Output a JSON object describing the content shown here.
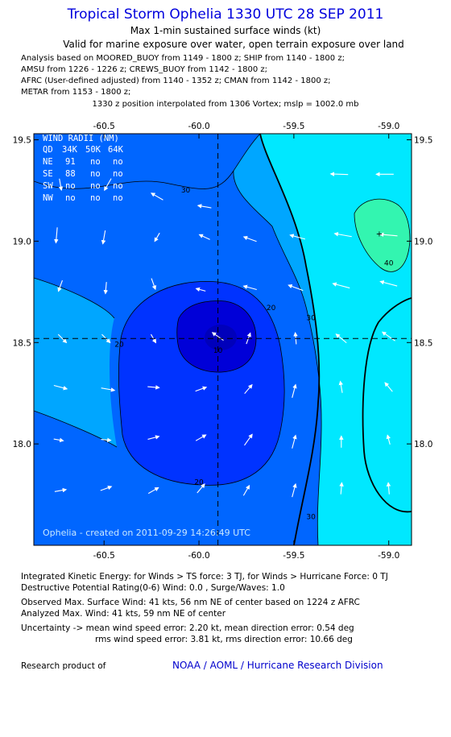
{
  "header": {
    "title": "Tropical Storm Ophelia 1330 UTC 28 SEP 2011",
    "subtitle1": "Max 1-min sustained surface winds (kt)",
    "subtitle2": "Valid for marine exposure over water, open terrain exposure over land",
    "analysis_lines": [
      "Analysis based on MOORED_BUOY from 1149 - 1800 z; SHIP from 1140 - 1800 z;",
      "AMSU from 1226 - 1226 z; CREWS_BUOY from 1142 - 1800 z;",
      "AFRC (User-defined adjusted) from 1140 - 1352 z; CMAN from 1142 - 1800 z;",
      "METAR from 1153 - 1800 z;"
    ],
    "interp_line": "1330 z position interpolated from 1306 Vortex; mslp = 1002.0 mb"
  },
  "wind_radii": {
    "title": "WIND RADII (NM)",
    "columns": [
      "QD",
      "34K",
      "50K",
      "64K"
    ],
    "rows": [
      [
        "NE",
        "91",
        "no",
        "no"
      ],
      [
        "SE",
        "88",
        "no",
        "no"
      ],
      [
        "SW",
        "no",
        "no",
        "no"
      ],
      [
        "NW",
        "no",
        "no",
        "no"
      ]
    ]
  },
  "created_text": "Ophelia - created on 2011-09-29 14:26:49 UTC",
  "colors": {
    "frame": "#000000",
    "crosshair": "#000000",
    "arrow": "#ffffff",
    "fill_0_10": "#0000d8",
    "fill_10_20": "#0033ff",
    "fill_20_30": "#0066ff",
    "fill_30_35": "#00a6ff",
    "fill_35_40": "#00e8ff",
    "fill_40_plus": "#33f5b0",
    "title": "#0000dd",
    "noaa": "#0000cc"
  },
  "chart_data": {
    "type": "contour",
    "xlabel": "",
    "ylabel": "",
    "xlim": [
      -60.87,
      -58.88
    ],
    "ylim": [
      17.5,
      19.53
    ],
    "xticks": [
      "-60.5",
      "-60.0",
      "-59.5",
      "-59.0"
    ],
    "xtick_values": [
      -60.5,
      -60.0,
      -59.5,
      -59.0
    ],
    "yticks": [
      "18.0",
      "18.5",
      "19.0",
      "19.5"
    ],
    "ytick_values": [
      18.0,
      18.5,
      19.0,
      19.5
    ],
    "center": {
      "lon": -59.9,
      "lat": 18.52
    },
    "contour_levels": [
      10,
      20,
      30,
      34,
      40
    ],
    "contour_labels": [
      {
        "text": "30",
        "lon": -60.07,
        "lat": 19.24
      },
      {
        "text": "20",
        "lon": -59.62,
        "lat": 18.66
      },
      {
        "text": "20",
        "lon": -60.42,
        "lat": 18.48
      },
      {
        "text": "20",
        "lon": -60.0,
        "lat": 17.8
      },
      {
        "text": "10",
        "lon": -59.9,
        "lat": 18.45
      },
      {
        "text": "30",
        "lon": -59.41,
        "lat": 18.61
      },
      {
        "text": "30",
        "lon": -59.41,
        "lat": 17.63
      },
      {
        "text": "40",
        "lon": -59.0,
        "lat": 18.88
      }
    ],
    "max_marker": {
      "lon": -59.05,
      "lat": 19.04
    },
    "wind_vectors_units": "dir_deg_toward (0=east, 90=north)",
    "wind_vectors": [
      {
        "lon": -60.73,
        "lat": 19.28,
        "dir": -80,
        "spd": 0.6
      },
      {
        "lon": -60.48,
        "lat": 19.28,
        "dir": -120,
        "spd": 0.7
      },
      {
        "lon": -60.22,
        "lat": 19.22,
        "dir": 150,
        "spd": 0.7
      },
      {
        "lon": -59.97,
        "lat": 19.17,
        "dir": 170,
        "spd": 0.7
      },
      {
        "lon": -59.26,
        "lat": 19.33,
        "dir": 178,
        "spd": 0.9
      },
      {
        "lon": -59.02,
        "lat": 19.33,
        "dir": 180,
        "spd": 0.9
      },
      {
        "lon": -60.75,
        "lat": 19.03,
        "dir": -95,
        "spd": 0.8
      },
      {
        "lon": -60.5,
        "lat": 19.02,
        "dir": -100,
        "spd": 0.7
      },
      {
        "lon": -60.22,
        "lat": 19.02,
        "dir": -120,
        "spd": 0.5
      },
      {
        "lon": -59.97,
        "lat": 19.02,
        "dir": 155,
        "spd": 0.6
      },
      {
        "lon": -59.73,
        "lat": 19.01,
        "dir": 160,
        "spd": 0.7
      },
      {
        "lon": -59.48,
        "lat": 19.02,
        "dir": 165,
        "spd": 0.8
      },
      {
        "lon": -59.24,
        "lat": 19.03,
        "dir": 170,
        "spd": 0.9
      },
      {
        "lon": -59.0,
        "lat": 19.03,
        "dir": 175,
        "spd": 0.9
      },
      {
        "lon": -60.73,
        "lat": 18.78,
        "dir": -110,
        "spd": 0.6
      },
      {
        "lon": -60.49,
        "lat": 18.77,
        "dir": -95,
        "spd": 0.6
      },
      {
        "lon": -60.24,
        "lat": 18.79,
        "dir": -70,
        "spd": 0.6
      },
      {
        "lon": -59.99,
        "lat": 18.76,
        "dir": 165,
        "spd": 0.5
      },
      {
        "lon": -59.73,
        "lat": 18.77,
        "dir": 165,
        "spd": 0.7
      },
      {
        "lon": -59.49,
        "lat": 18.77,
        "dir": 160,
        "spd": 0.8
      },
      {
        "lon": -59.25,
        "lat": 18.78,
        "dir": 165,
        "spd": 0.9
      },
      {
        "lon": -59.0,
        "lat": 18.79,
        "dir": 165,
        "spd": 0.9
      },
      {
        "lon": -60.72,
        "lat": 18.52,
        "dir": -45,
        "spd": 0.6
      },
      {
        "lon": -60.49,
        "lat": 18.52,
        "dir": -45,
        "spd": 0.6
      },
      {
        "lon": -60.24,
        "lat": 18.52,
        "dir": -60,
        "spd": 0.5
      },
      {
        "lon": -59.9,
        "lat": 18.53,
        "dir": 145,
        "spd": 0.7
      },
      {
        "lon": -59.74,
        "lat": 18.52,
        "dir": 70,
        "spd": 0.6
      },
      {
        "lon": -59.49,
        "lat": 18.52,
        "dir": 95,
        "spd": 0.6
      },
      {
        "lon": -59.25,
        "lat": 18.52,
        "dir": 140,
        "spd": 0.7
      },
      {
        "lon": -59.0,
        "lat": 18.53,
        "dir": 145,
        "spd": 0.8
      },
      {
        "lon": -60.73,
        "lat": 18.28,
        "dir": -15,
        "spd": 0.7
      },
      {
        "lon": -60.48,
        "lat": 18.27,
        "dir": -10,
        "spd": 0.7
      },
      {
        "lon": -60.24,
        "lat": 18.28,
        "dir": -5,
        "spd": 0.6
      },
      {
        "lon": -59.99,
        "lat": 18.27,
        "dir": 20,
        "spd": 0.6
      },
      {
        "lon": -59.74,
        "lat": 18.27,
        "dir": 50,
        "spd": 0.6
      },
      {
        "lon": -59.5,
        "lat": 18.26,
        "dir": 75,
        "spd": 0.7
      },
      {
        "lon": -59.25,
        "lat": 18.28,
        "dir": 100,
        "spd": 0.6
      },
      {
        "lon": -59.0,
        "lat": 18.28,
        "dir": 130,
        "spd": 0.6
      },
      {
        "lon": -60.74,
        "lat": 18.02,
        "dir": -10,
        "spd": 0.5
      },
      {
        "lon": -60.49,
        "lat": 18.02,
        "dir": -5,
        "spd": 0.5
      },
      {
        "lon": -60.24,
        "lat": 18.03,
        "dir": 15,
        "spd": 0.6
      },
      {
        "lon": -59.99,
        "lat": 18.03,
        "dir": 30,
        "spd": 0.6
      },
      {
        "lon": -59.74,
        "lat": 18.02,
        "dir": 55,
        "spd": 0.7
      },
      {
        "lon": -59.5,
        "lat": 18.01,
        "dir": 75,
        "spd": 0.7
      },
      {
        "lon": -59.25,
        "lat": 18.01,
        "dir": 90,
        "spd": 0.6
      },
      {
        "lon": -59.0,
        "lat": 18.02,
        "dir": 105,
        "spd": 0.5
      },
      {
        "lon": -60.73,
        "lat": 17.77,
        "dir": 10,
        "spd": 0.6
      },
      {
        "lon": -60.49,
        "lat": 17.78,
        "dir": 20,
        "spd": 0.6
      },
      {
        "lon": -60.24,
        "lat": 17.77,
        "dir": 30,
        "spd": 0.6
      },
      {
        "lon": -59.99,
        "lat": 17.78,
        "dir": 50,
        "spd": 0.6
      },
      {
        "lon": -59.75,
        "lat": 17.77,
        "dir": 60,
        "spd": 0.6
      },
      {
        "lon": -59.5,
        "lat": 17.77,
        "dir": 75,
        "spd": 0.7
      },
      {
        "lon": -59.25,
        "lat": 17.78,
        "dir": 85,
        "spd": 0.6
      },
      {
        "lon": -59.0,
        "lat": 17.78,
        "dir": 95,
        "spd": 0.6
      }
    ]
  },
  "footer": {
    "ike": "Integrated Kinetic Energy:  for Winds > TS force: 3 TJ,  for Winds > Hurricane Force: 0 TJ",
    "dpr": "Destructive Potential Rating(0-6)   Wind: 0.0 , Surge/Waves: 1.0",
    "observed": "Observed Max. Surface Wind: 41 kts, 56 nm NE of center based on 1224 z AFRC",
    "analyzed": "Analyzed Max. Wind: 41 kts, 59 nm NE of center",
    "uncertainty1": "Uncertainty -> mean wind speed error: 2.20 kt,   mean direction error: 0.54 deg",
    "uncertainty2": "rms wind speed error: 3.81 kt,   rms direction error: 10.66 deg",
    "research": "Research product of",
    "noaa": "NOAA / AOML / Hurricane Research Division"
  }
}
